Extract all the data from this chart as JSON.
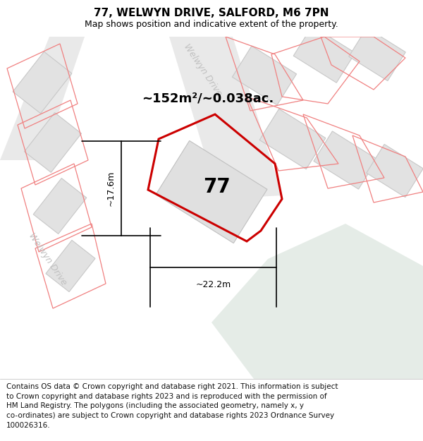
{
  "title": "77, WELWYN DRIVE, SALFORD, M6 7PN",
  "subtitle": "Map shows position and indicative extent of the property.",
  "area_label": "~152m²/~0.038ac.",
  "number_label": "77",
  "dim_vertical": "~17.6m",
  "dim_horizontal": "~22.2m",
  "street_label_upper": "Welwyn Drive",
  "street_label_lower": "Welwyn Drive",
  "footer": "Contains OS data © Crown copyright and database right 2021. This information is subject\nto Crown copyright and database rights 2023 and is reproduced with the permission of\nHM Land Registry. The polygons (including the associated geometry, namely x, y\nco-ordinates) are subject to Crown copyright and database rights 2023 Ordnance Survey\n100026316.",
  "map_bg": "#efefef",
  "building_fill": "#e2e2e2",
  "building_edge_color": "#c8c8c8",
  "pink_line_color": "#f08080",
  "red_line_color": "#cc0000",
  "green_fill": "#e5ece7",
  "road_fill": "#e9e9e9",
  "title_fs": 11,
  "subtitle_fs": 9,
  "footer_fs": 7.5,
  "area_fs": 13,
  "number_fs": 20,
  "dim_fs": 9,
  "street_fs": 9
}
